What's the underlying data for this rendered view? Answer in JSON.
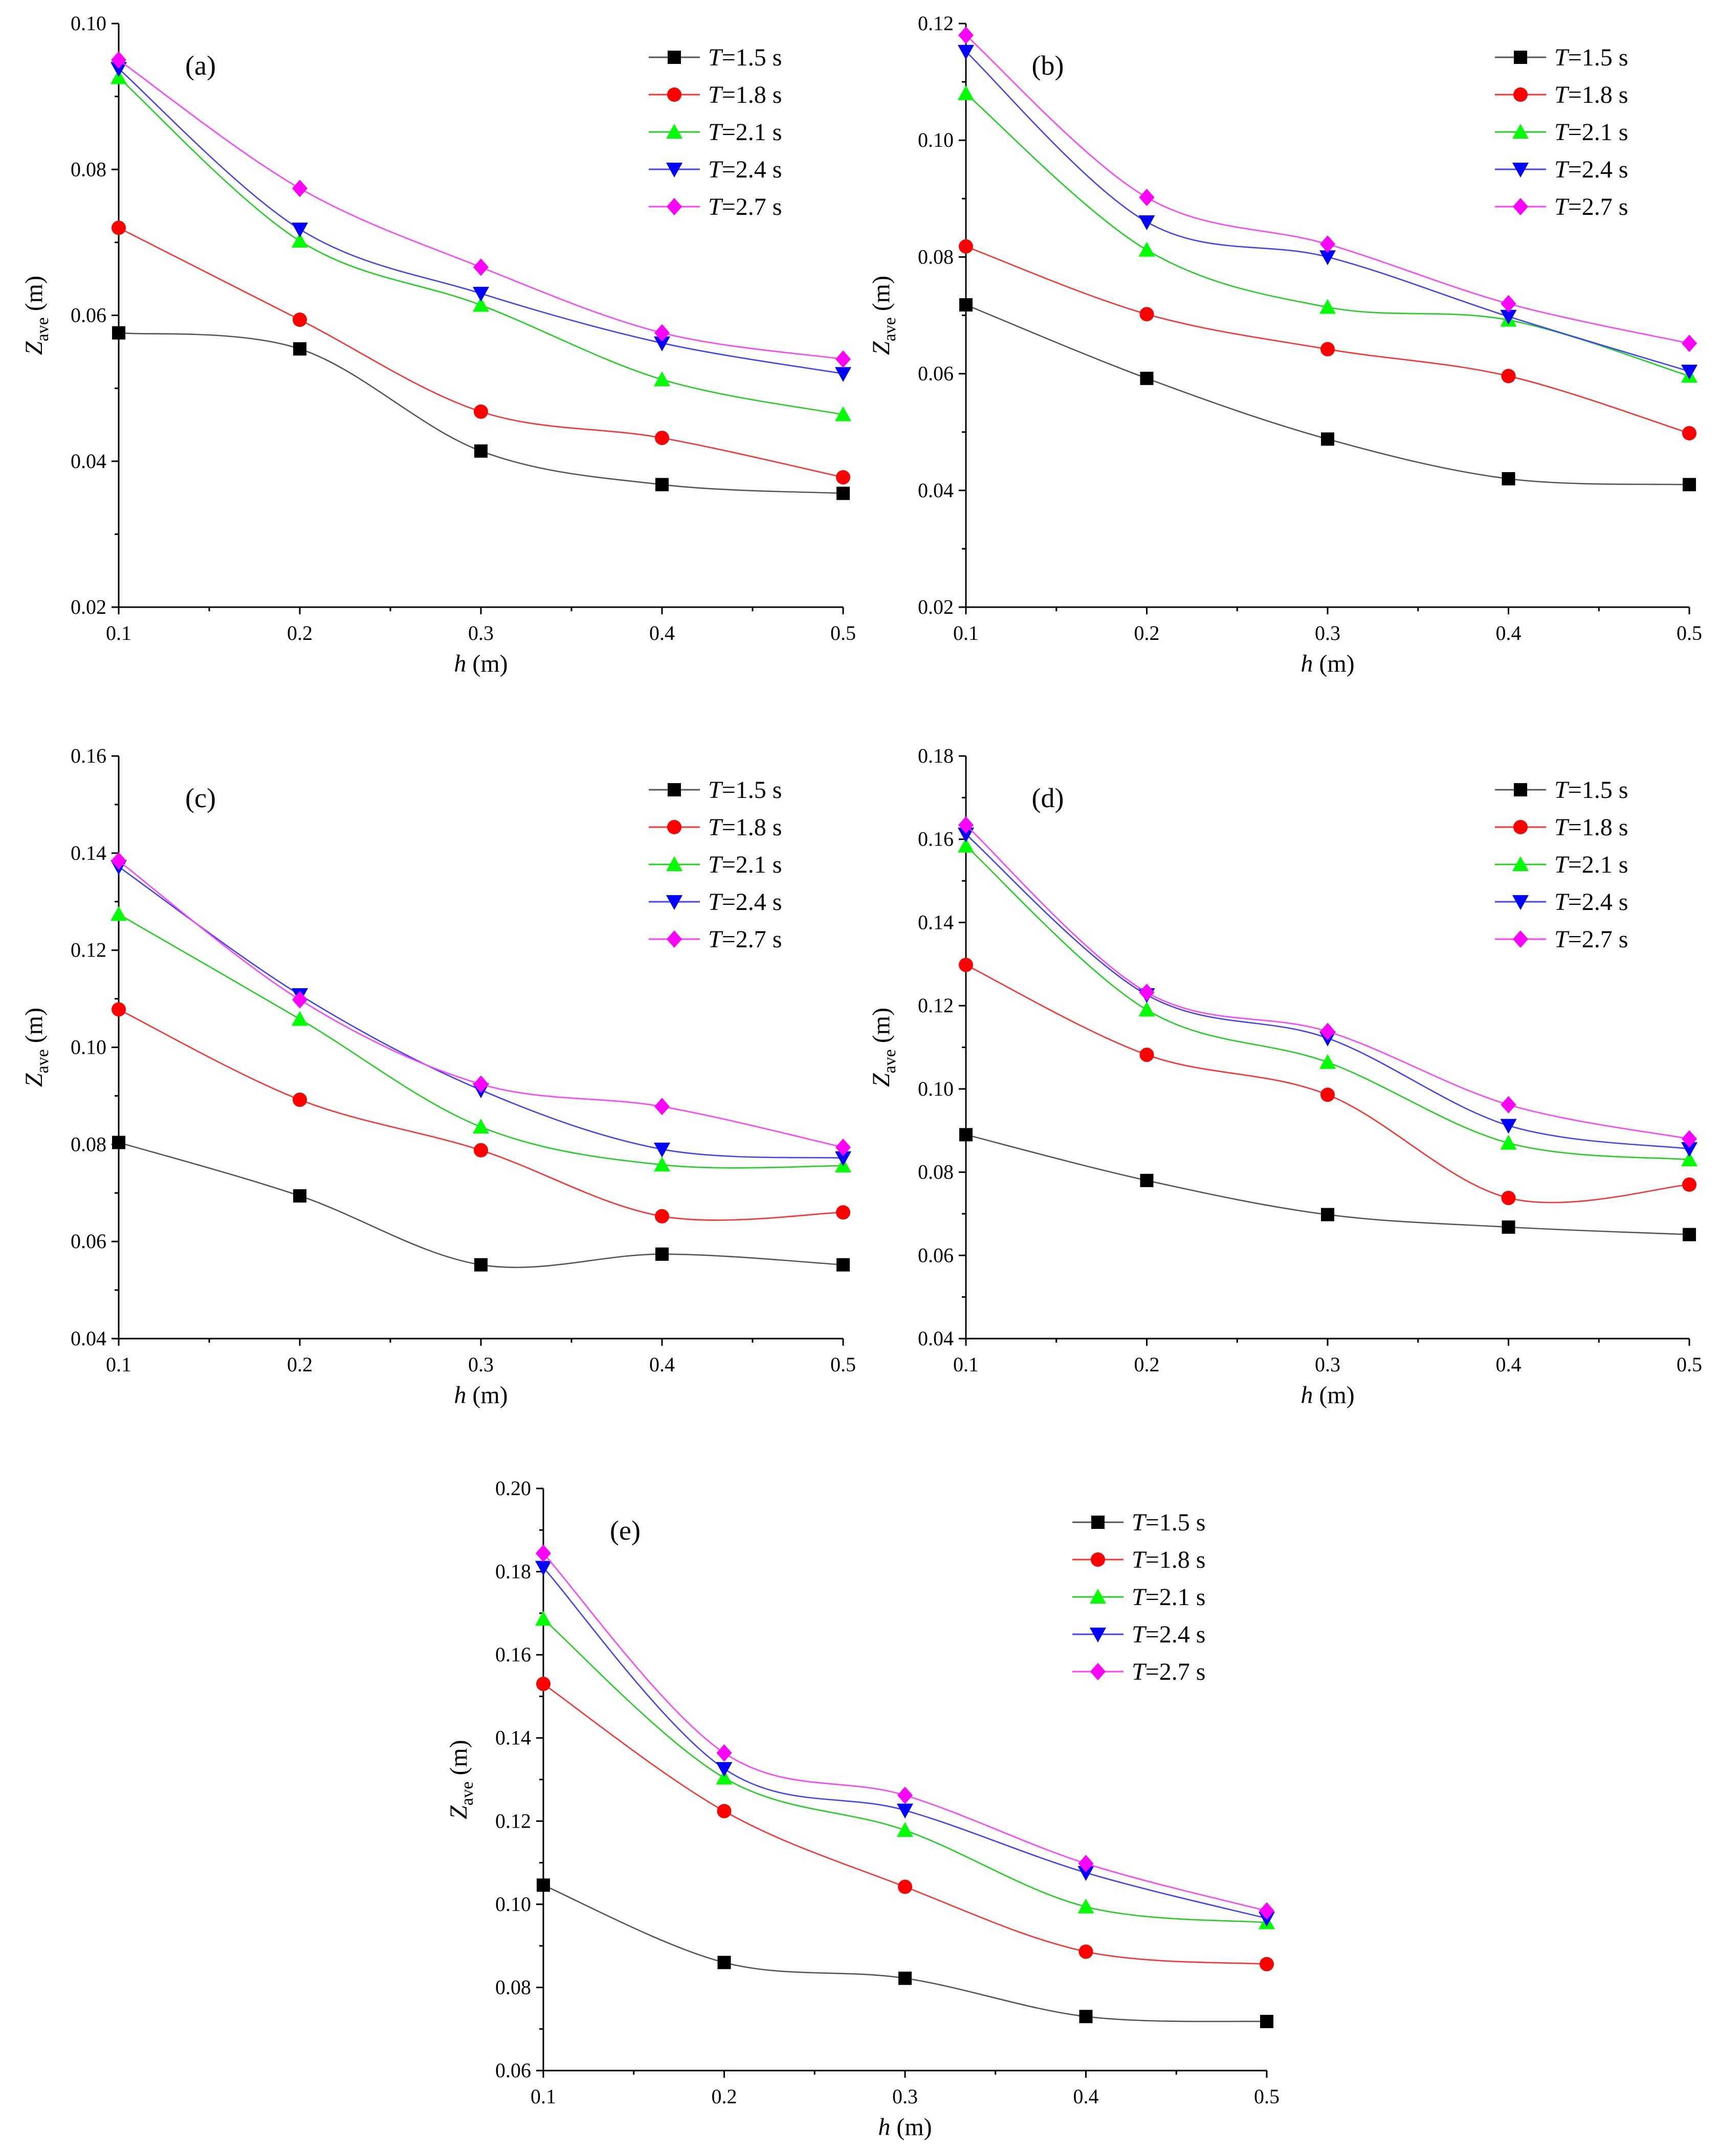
{
  "figure": {
    "x_label_var": "h",
    "x_label_unit": " (m)",
    "y_label_var": "Z",
    "y_label_sub": "ave",
    "y_label_unit": " (m)"
  },
  "legend_entries": [
    {
      "var": "T",
      "rest": "=1.5 s"
    },
    {
      "var": "T",
      "rest": "=1.8 s"
    },
    {
      "var": "T",
      "rest": "=2.1 s"
    },
    {
      "var": "T",
      "rest": "=2.4 s"
    },
    {
      "var": "T",
      "rest": "=2.7 s"
    }
  ],
  "series_style": [
    {
      "color": "#000000",
      "line_color": "#555555",
      "marker": "square"
    },
    {
      "color": "#ff0000",
      "line_color": "#ff3030",
      "marker": "circle"
    },
    {
      "color": "#00ff00",
      "line_color": "#20d020",
      "marker": "triangle-up"
    },
    {
      "color": "#0000ff",
      "line_color": "#4040ff",
      "marker": "triangle-down"
    },
    {
      "color": "#ff00ff",
      "line_color": "#ff40ff",
      "marker": "diamond"
    }
  ],
  "chart_data": [
    {
      "type": "line",
      "panel_label": "(a)",
      "xlabel": "h (m)",
      "ylabel": "Zave (m)",
      "x": [
        0.1,
        0.2,
        0.3,
        0.4,
        0.5
      ],
      "x_ticks": [
        "0.1",
        "0.2",
        "0.3",
        "0.4",
        "0.5"
      ],
      "xlim": [
        0.1,
        0.5
      ],
      "ylim": [
        0.02,
        0.1
      ],
      "y_ticks": [
        "0.02",
        "0.04",
        "0.06",
        "0.08",
        "0.10"
      ],
      "series": [
        {
          "name": "T=1.5 s",
          "values": [
            0.0576,
            0.0554,
            0.0414,
            0.0368,
            0.0356
          ]
        },
        {
          "name": "T=1.8 s",
          "values": [
            0.072,
            0.0594,
            0.0468,
            0.0432,
            0.0378
          ]
        },
        {
          "name": "T=2.1 s",
          "values": [
            0.0926,
            0.0702,
            0.0614,
            0.0512,
            0.0464
          ]
        },
        {
          "name": "T=2.4 s",
          "values": [
            0.0938,
            0.0718,
            0.063,
            0.0562,
            0.052
          ]
        },
        {
          "name": "T=2.7 s",
          "values": [
            0.095,
            0.0774,
            0.0666,
            0.0576,
            0.054
          ]
        }
      ],
      "legend": "top-right"
    },
    {
      "type": "line",
      "panel_label": "(b)",
      "xlabel": "h (m)",
      "ylabel": "Zave (m)",
      "x": [
        0.1,
        0.2,
        0.3,
        0.4,
        0.5
      ],
      "x_ticks": [
        "0.1",
        "0.2",
        "0.3",
        "0.4",
        "0.5"
      ],
      "xlim": [
        0.1,
        0.5
      ],
      "ylim": [
        0.02,
        0.12
      ],
      "y_ticks": [
        "0.02",
        "0.04",
        "0.06",
        "0.08",
        "0.10",
        "0.12"
      ],
      "series": [
        {
          "name": "T=1.5 s",
          "values": [
            0.0718,
            0.0592,
            0.0488,
            0.042,
            0.041
          ]
        },
        {
          "name": "T=1.8 s",
          "values": [
            0.0818,
            0.0702,
            0.0642,
            0.0596,
            0.0498
          ]
        },
        {
          "name": "T=2.1 s",
          "values": [
            0.108,
            0.0812,
            0.0714,
            0.0692,
            0.0596
          ]
        },
        {
          "name": "T=2.4 s",
          "values": [
            0.1152,
            0.086,
            0.08,
            0.0698,
            0.0604
          ]
        },
        {
          "name": "T=2.7 s",
          "values": [
            0.118,
            0.0902,
            0.0822,
            0.072,
            0.0652
          ]
        }
      ],
      "legend": "top-right"
    },
    {
      "type": "line",
      "panel_label": "(c)",
      "xlabel": "h (m)",
      "ylabel": "Zave (m)",
      "x": [
        0.1,
        0.2,
        0.3,
        0.4,
        0.5
      ],
      "x_ticks": [
        "0.1",
        "0.2",
        "0.3",
        "0.4",
        "0.5"
      ],
      "xlim": [
        0.1,
        0.5
      ],
      "ylim": [
        0.04,
        0.16
      ],
      "y_ticks": [
        "0.04",
        "0.06",
        "0.08",
        "0.10",
        "0.12",
        "0.14",
        "0.16"
      ],
      "series": [
        {
          "name": "T=1.5 s",
          "values": [
            0.0804,
            0.0694,
            0.0552,
            0.0574,
            0.0552
          ]
        },
        {
          "name": "T=1.8 s",
          "values": [
            0.1078,
            0.0892,
            0.0788,
            0.0652,
            0.066
          ]
        },
        {
          "name": "T=2.1 s",
          "values": [
            0.1274,
            0.1058,
            0.0836,
            0.0758,
            0.0756
          ]
        },
        {
          "name": "T=2.4 s",
          "values": [
            0.1372,
            0.1108,
            0.0912,
            0.079,
            0.0772
          ]
        },
        {
          "name": "T=2.7 s",
          "values": [
            0.1384,
            0.1098,
            0.0924,
            0.0878,
            0.0794
          ]
        }
      ],
      "legend": "top-right"
    },
    {
      "type": "line",
      "panel_label": "(d)",
      "xlabel": "h (m)",
      "ylabel": "Zave (m)",
      "x": [
        0.1,
        0.2,
        0.3,
        0.4,
        0.5
      ],
      "x_ticks": [
        "0.1",
        "0.2",
        "0.3",
        "0.4",
        "0.5"
      ],
      "xlim": [
        0.1,
        0.5
      ],
      "ylim": [
        0.04,
        0.18
      ],
      "y_ticks": [
        "0.04",
        "0.06",
        "0.08",
        "0.10",
        "0.12",
        "0.14",
        "0.16",
        "0.18"
      ],
      "series": [
        {
          "name": "T=1.5 s",
          "values": [
            0.089,
            0.078,
            0.0698,
            0.0668,
            0.065
          ]
        },
        {
          "name": "T=1.8 s",
          "values": [
            0.1298,
            0.1082,
            0.0986,
            0.0738,
            0.077
          ]
        },
        {
          "name": "T=2.1 s",
          "values": [
            0.1584,
            0.119,
            0.1064,
            0.087,
            0.083
          ]
        },
        {
          "name": "T=2.4 s",
          "values": [
            0.1612,
            0.1226,
            0.1122,
            0.0912,
            0.0856
          ]
        },
        {
          "name": "T=2.7 s",
          "values": [
            0.1634,
            0.1232,
            0.1138,
            0.0962,
            0.088
          ]
        }
      ],
      "legend": "top-right"
    },
    {
      "type": "line",
      "panel_label": "(e)",
      "xlabel": "h (m)",
      "ylabel": "Zave (m)",
      "x": [
        0.1,
        0.2,
        0.3,
        0.4,
        0.5
      ],
      "x_ticks": [
        "0.1",
        "0.2",
        "0.3",
        "0.4",
        "0.5"
      ],
      "xlim": [
        0.1,
        0.5
      ],
      "ylim": [
        0.06,
        0.2
      ],
      "y_ticks": [
        "0.06",
        "0.08",
        "0.10",
        "0.12",
        "0.14",
        "0.16",
        "0.18",
        "0.20"
      ],
      "series": [
        {
          "name": "T=1.5 s",
          "values": [
            0.1046,
            0.086,
            0.0822,
            0.073,
            0.0718
          ]
        },
        {
          "name": "T=1.8 s",
          "values": [
            0.153,
            0.1224,
            0.1042,
            0.0886,
            0.0856
          ]
        },
        {
          "name": "T=2.1 s",
          "values": [
            0.1686,
            0.1304,
            0.1178,
            0.0994,
            0.0956
          ]
        },
        {
          "name": "T=2.4 s",
          "values": [
            0.181,
            0.1326,
            0.1226,
            0.1076,
            0.0966
          ]
        },
        {
          "name": "T=2.7 s",
          "values": [
            0.1844,
            0.1364,
            0.1262,
            0.1098,
            0.0984
          ]
        }
      ],
      "legend": "top-right"
    }
  ]
}
